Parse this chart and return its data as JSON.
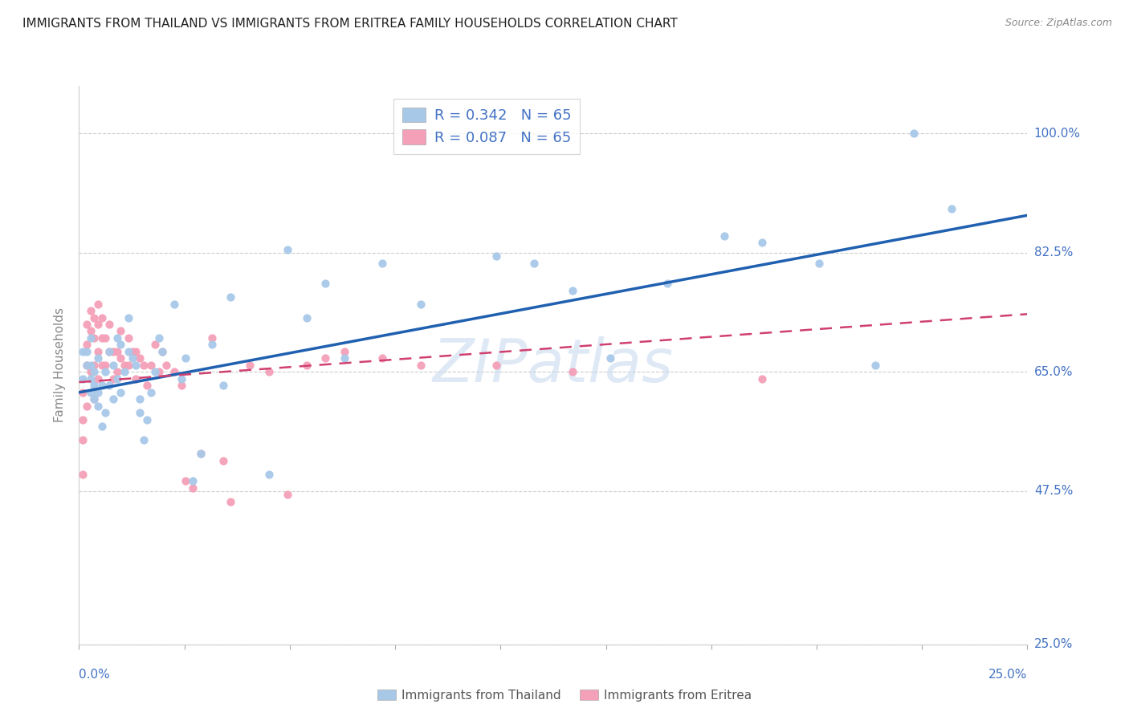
{
  "title": "IMMIGRANTS FROM THAILAND VS IMMIGRANTS FROM ERITREA FAMILY HOUSEHOLDS CORRELATION CHART",
  "source": "Source: ZipAtlas.com",
  "ylabel": "Family Households",
  "yticks_labels": [
    "100.0%",
    "82.5%",
    "65.0%",
    "47.5%",
    "25.0%"
  ],
  "ytick_values": [
    1.0,
    0.825,
    0.65,
    0.475,
    0.25
  ],
  "xlim": [
    0.0,
    0.25
  ],
  "ylim": [
    0.25,
    1.07
  ],
  "legend_thailand": "R = 0.342   N = 65",
  "legend_eritrea": "R = 0.087   N = 65",
  "color_thailand": "#a8c8e8",
  "color_eritrea": "#f4a0b8",
  "color_line_thailand": "#2060b0",
  "color_line_eritrea": "#d04070",
  "thailand_x": [
    0.001,
    0.001,
    0.002,
    0.002,
    0.003,
    0.003,
    0.003,
    0.003,
    0.004,
    0.004,
    0.004,
    0.005,
    0.005,
    0.005,
    0.006,
    0.006,
    0.007,
    0.007,
    0.008,
    0.008,
    0.009,
    0.009,
    0.01,
    0.01,
    0.011,
    0.011,
    0.012,
    0.013,
    0.013,
    0.014,
    0.015,
    0.016,
    0.016,
    0.017,
    0.018,
    0.019,
    0.02,
    0.021,
    0.022,
    0.025,
    0.027,
    0.028,
    0.03,
    0.032,
    0.035,
    0.038,
    0.04,
    0.05,
    0.055,
    0.06,
    0.065,
    0.07,
    0.08,
    0.09,
    0.11,
    0.13,
    0.155,
    0.17,
    0.18,
    0.21,
    0.22,
    0.23,
    0.195,
    0.14,
    0.12
  ],
  "thailand_y": [
    0.64,
    0.68,
    0.66,
    0.68,
    0.62,
    0.64,
    0.66,
    0.7,
    0.61,
    0.63,
    0.65,
    0.6,
    0.62,
    0.67,
    0.57,
    0.63,
    0.59,
    0.65,
    0.63,
    0.68,
    0.61,
    0.66,
    0.64,
    0.7,
    0.62,
    0.69,
    0.65,
    0.68,
    0.73,
    0.67,
    0.66,
    0.59,
    0.61,
    0.55,
    0.58,
    0.62,
    0.65,
    0.7,
    0.68,
    0.75,
    0.64,
    0.67,
    0.49,
    0.53,
    0.69,
    0.63,
    0.76,
    0.5,
    0.83,
    0.73,
    0.78,
    0.67,
    0.81,
    0.75,
    0.82,
    0.77,
    0.78,
    0.85,
    0.84,
    0.66,
    1.0,
    0.89,
    0.81,
    0.67,
    0.81
  ],
  "eritrea_x": [
    0.001,
    0.001,
    0.001,
    0.001,
    0.002,
    0.002,
    0.002,
    0.002,
    0.003,
    0.003,
    0.003,
    0.004,
    0.004,
    0.004,
    0.004,
    0.005,
    0.005,
    0.005,
    0.005,
    0.006,
    0.006,
    0.006,
    0.007,
    0.007,
    0.008,
    0.008,
    0.009,
    0.009,
    0.01,
    0.01,
    0.011,
    0.011,
    0.012,
    0.013,
    0.013,
    0.014,
    0.015,
    0.015,
    0.016,
    0.017,
    0.018,
    0.019,
    0.02,
    0.021,
    0.022,
    0.023,
    0.025,
    0.027,
    0.028,
    0.03,
    0.032,
    0.035,
    0.038,
    0.04,
    0.045,
    0.05,
    0.055,
    0.06,
    0.065,
    0.07,
    0.08,
    0.09,
    0.11,
    0.13,
    0.18
  ],
  "eritrea_y": [
    0.62,
    0.58,
    0.55,
    0.5,
    0.72,
    0.69,
    0.66,
    0.6,
    0.74,
    0.71,
    0.65,
    0.73,
    0.7,
    0.66,
    0.61,
    0.75,
    0.72,
    0.68,
    0.64,
    0.73,
    0.7,
    0.66,
    0.7,
    0.66,
    0.72,
    0.68,
    0.68,
    0.64,
    0.68,
    0.65,
    0.71,
    0.67,
    0.66,
    0.7,
    0.66,
    0.68,
    0.68,
    0.64,
    0.67,
    0.66,
    0.63,
    0.66,
    0.69,
    0.65,
    0.68,
    0.66,
    0.65,
    0.63,
    0.49,
    0.48,
    0.53,
    0.7,
    0.52,
    0.46,
    0.66,
    0.65,
    0.47,
    0.66,
    0.67,
    0.68,
    0.67,
    0.66,
    0.66,
    0.65,
    0.64
  ]
}
